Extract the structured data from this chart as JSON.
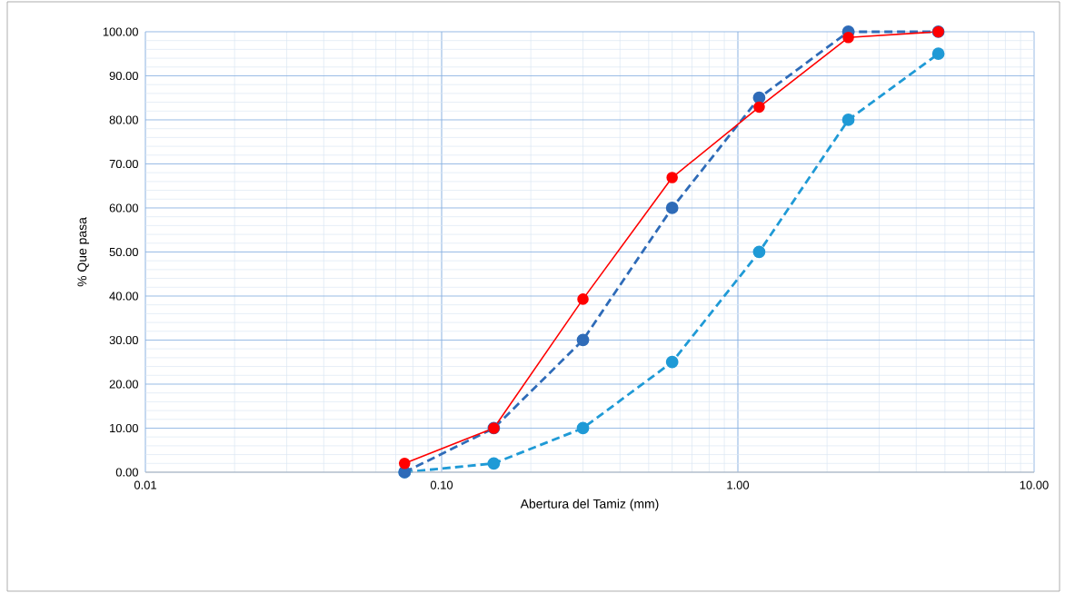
{
  "chart_data": {
    "type": "line",
    "xlabel": "Abertura del Tamiz (mm)",
    "ylabel": "% Que pasa",
    "x": [
      0.075,
      0.15,
      0.3,
      0.6,
      1.18,
      2.36,
      4.75
    ],
    "series": [
      {
        "color": "#ff0000",
        "values": [
          2,
          10,
          39.3,
          66.9,
          82.9,
          98.7,
          100
        ],
        "line_style": "solid"
      },
      {
        "color": "#2e6bb8",
        "values": [
          0,
          10,
          30,
          60,
          85,
          100,
          100
        ],
        "line_style": "dashed"
      },
      {
        "color": "#1f9ad6",
        "values": [
          0,
          2,
          10,
          25,
          50,
          80,
          95
        ],
        "line_style": "dashed"
      }
    ],
    "log": "x",
    "xlim": [
      0.01,
      10
    ],
    "ylim": [
      0,
      100
    ],
    "xticks": [
      {
        "value": 0.01,
        "label": "0.01"
      },
      {
        "value": 0.1,
        "label": "0.10"
      },
      {
        "value": 1,
        "label": "1.00"
      },
      {
        "value": 10,
        "label": "10.00"
      }
    ],
    "yticks": [
      {
        "value": 0,
        "label": "0.00"
      },
      {
        "value": 10,
        "label": "10.00"
      },
      {
        "value": 20,
        "label": "20.00"
      },
      {
        "value": 30,
        "label": "30.00"
      },
      {
        "value": 40,
        "label": "40.00"
      },
      {
        "value": 50,
        "label": "50.00"
      },
      {
        "value": 60,
        "label": "60.00"
      },
      {
        "value": 70,
        "label": "70.00"
      },
      {
        "value": 80,
        "label": "80.00"
      },
      {
        "value": 90,
        "label": "90.00"
      },
      {
        "value": 100,
        "label": "100.00"
      }
    ],
    "grid": true,
    "marker": "circle"
  }
}
